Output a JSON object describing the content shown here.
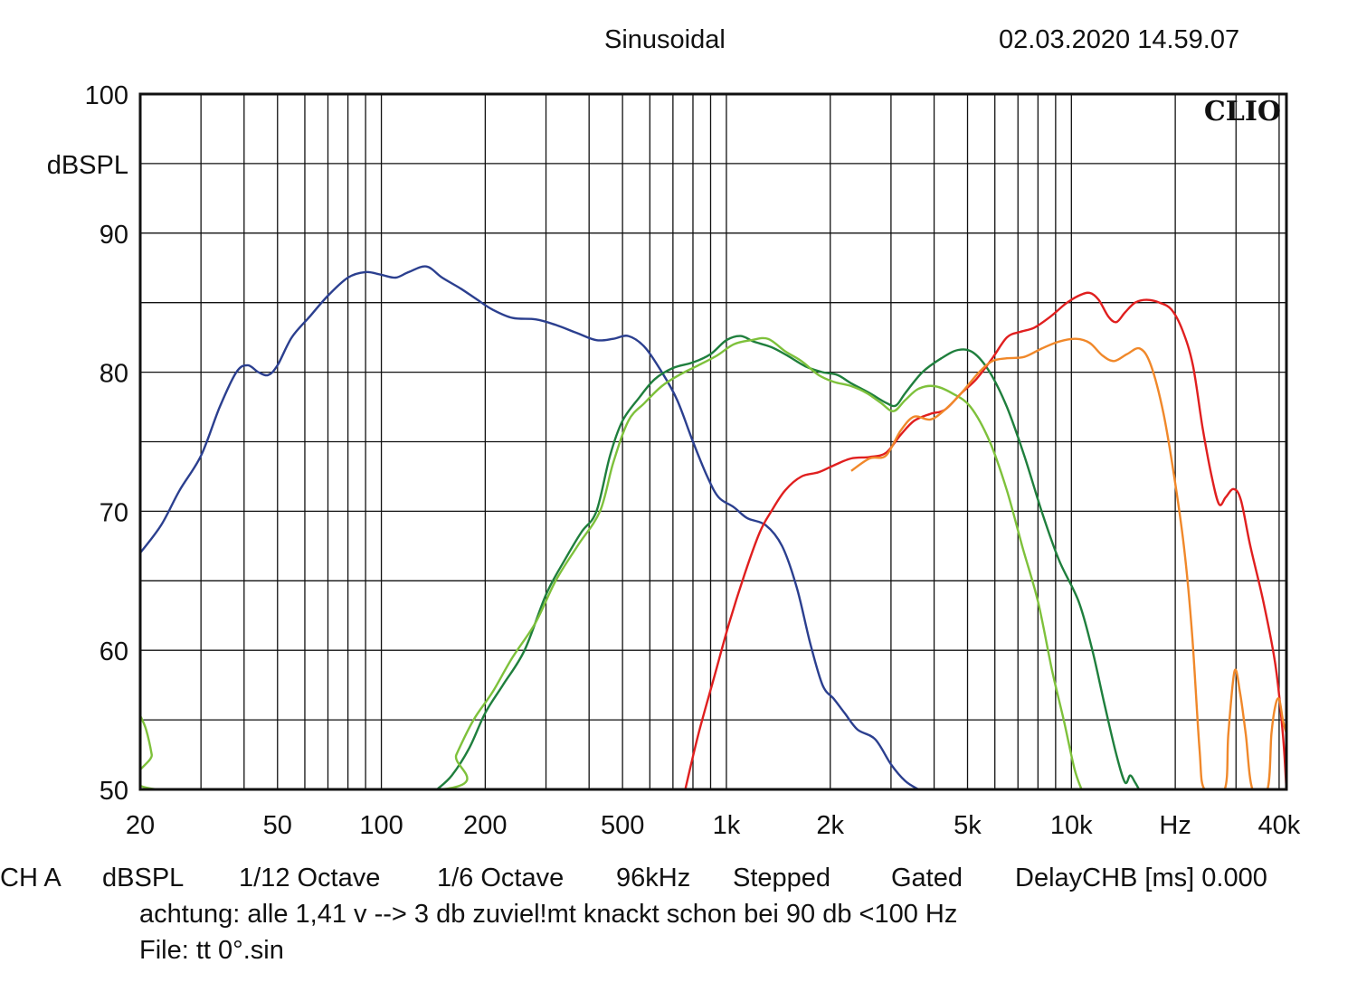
{
  "header": {
    "mode": "Sinusoidal",
    "timestamp": "02.03.2020 14.59.07"
  },
  "brand_label": "CLIO",
  "footer": {
    "settings": [
      "CH A",
      "dBSPL",
      "1/12 Octave",
      "1/6 Octave",
      "96kHz",
      "Stepped",
      "Gated",
      "DelayCHB [ms] 0.000"
    ],
    "note": "achtung: alle 1,41 v --> 3 db zuviel!mt knackt schon bei 90 db <100 Hz",
    "file": "File: tt 0°.sin"
  },
  "chart_data": {
    "type": "line",
    "title": "Sinusoidal",
    "ylabel": "dBSPL",
    "xlabel": "Hz",
    "x_scale": "log",
    "xlim": [
      20,
      42000
    ],
    "ylim": [
      50,
      100
    ],
    "grid": true,
    "x_tick_labels": [
      {
        "value": 20,
        "label": "20"
      },
      {
        "value": 50,
        "label": "50"
      },
      {
        "value": 100,
        "label": "100"
      },
      {
        "value": 200,
        "label": "200"
      },
      {
        "value": 500,
        "label": "500"
      },
      {
        "value": 1000,
        "label": "1k"
      },
      {
        "value": 2000,
        "label": "2k"
      },
      {
        "value": 5000,
        "label": "5k"
      },
      {
        "value": 10000,
        "label": "10k"
      },
      {
        "value": 20000,
        "label": "Hz"
      },
      {
        "value": 40000,
        "label": "40k"
      }
    ],
    "y_ticks": [
      50,
      60,
      70,
      80,
      90,
      100
    ],
    "series": [
      {
        "color": "#2b3f8f",
        "points": [
          [
            20,
            67
          ],
          [
            23,
            69
          ],
          [
            26,
            71.5
          ],
          [
            30,
            74
          ],
          [
            34,
            77.5
          ],
          [
            38,
            80
          ],
          [
            41,
            80.5
          ],
          [
            44,
            80
          ],
          [
            47,
            79.8
          ],
          [
            50,
            80.5
          ],
          [
            55,
            82.5
          ],
          [
            62,
            84
          ],
          [
            70,
            85.5
          ],
          [
            80,
            86.8
          ],
          [
            90,
            87.2
          ],
          [
            100,
            87
          ],
          [
            110,
            86.8
          ],
          [
            120,
            87.2
          ],
          [
            135,
            87.6
          ],
          [
            150,
            86.8
          ],
          [
            170,
            86
          ],
          [
            190,
            85.2
          ],
          [
            210,
            84.5
          ],
          [
            240,
            83.9
          ],
          [
            280,
            83.8
          ],
          [
            320,
            83.4
          ],
          [
            370,
            82.8
          ],
          [
            420,
            82.3
          ],
          [
            470,
            82.4
          ],
          [
            520,
            82.6
          ],
          [
            580,
            81.8
          ],
          [
            650,
            80
          ],
          [
            720,
            78
          ],
          [
            800,
            75
          ],
          [
            880,
            72.5
          ],
          [
            950,
            71
          ],
          [
            1050,
            70.3
          ],
          [
            1150,
            69.5
          ],
          [
            1300,
            69
          ],
          [
            1450,
            67.5
          ],
          [
            1600,
            64.5
          ],
          [
            1750,
            60.5
          ],
          [
            1900,
            57.5
          ],
          [
            2050,
            56.5
          ],
          [
            2200,
            55.5
          ],
          [
            2400,
            54.3
          ],
          [
            2700,
            53.6
          ],
          [
            3000,
            51.8
          ],
          [
            3300,
            50.6
          ],
          [
            3600,
            50
          ]
        ]
      },
      {
        "color": "#1f7f3d",
        "points": [
          [
            145,
            50
          ],
          [
            160,
            51
          ],
          [
            180,
            53
          ],
          [
            200,
            55.5
          ],
          [
            225,
            57.5
          ],
          [
            260,
            60
          ],
          [
            300,
            64
          ],
          [
            340,
            66.5
          ],
          [
            380,
            68.5
          ],
          [
            420,
            70
          ],
          [
            460,
            74
          ],
          [
            500,
            76.5
          ],
          [
            560,
            78.2
          ],
          [
            620,
            79.5
          ],
          [
            700,
            80.3
          ],
          [
            800,
            80.7
          ],
          [
            900,
            81.3
          ],
          [
            1000,
            82.3
          ],
          [
            1100,
            82.6
          ],
          [
            1200,
            82.2
          ],
          [
            1350,
            81.8
          ],
          [
            1500,
            81.2
          ],
          [
            1700,
            80.4
          ],
          [
            1900,
            80
          ],
          [
            2100,
            79.8
          ],
          [
            2300,
            79.2
          ],
          [
            2600,
            78.5
          ],
          [
            2900,
            77.8
          ],
          [
            3100,
            77.6
          ],
          [
            3300,
            78.5
          ],
          [
            3700,
            80
          ],
          [
            4200,
            81
          ],
          [
            4700,
            81.6
          ],
          [
            5200,
            81.4
          ],
          [
            5800,
            80
          ],
          [
            6500,
            77.5
          ],
          [
            7300,
            74
          ],
          [
            8200,
            70
          ],
          [
            9200,
            66.5
          ],
          [
            10500,
            63.5
          ],
          [
            11500,
            60
          ],
          [
            12500,
            56
          ],
          [
            13500,
            52.5
          ],
          [
            14300,
            50.5
          ],
          [
            14800,
            51
          ],
          [
            15300,
            50.5
          ],
          [
            15700,
            50
          ]
        ]
      },
      {
        "color": "#7ec13b",
        "points": [
          [
            20,
            55.3
          ],
          [
            20.8,
            54.3
          ],
          [
            21.6,
            52.5
          ],
          [
            22.3,
            50
          ],
          [
            150,
            50
          ],
          [
            165,
            52.5
          ],
          [
            185,
            55
          ],
          [
            210,
            57
          ],
          [
            240,
            59.5
          ],
          [
            280,
            62
          ],
          [
            320,
            65
          ],
          [
            370,
            67.5
          ],
          [
            430,
            70
          ],
          [
            470,
            73.5
          ],
          [
            520,
            76.5
          ],
          [
            580,
            77.8
          ],
          [
            650,
            79
          ],
          [
            730,
            79.8
          ],
          [
            830,
            80.5
          ],
          [
            940,
            81.2
          ],
          [
            1050,
            82
          ],
          [
            1180,
            82.3
          ],
          [
            1320,
            82.4
          ],
          [
            1480,
            81.5
          ],
          [
            1650,
            80.8
          ],
          [
            1850,
            79.8
          ],
          [
            2050,
            79.3
          ],
          [
            2300,
            79
          ],
          [
            2550,
            78.5
          ],
          [
            2800,
            77.8
          ],
          [
            3050,
            77.2
          ],
          [
            3300,
            78
          ],
          [
            3600,
            78.8
          ],
          [
            4000,
            79
          ],
          [
            4500,
            78.5
          ],
          [
            5100,
            77.5
          ],
          [
            5800,
            75
          ],
          [
            6500,
            71.5
          ],
          [
            7200,
            67.5
          ],
          [
            8000,
            63.5
          ],
          [
            8800,
            58.5
          ],
          [
            9500,
            55
          ],
          [
            10200,
            51.5
          ],
          [
            10700,
            50
          ]
        ]
      },
      {
        "color": "#e01f1f",
        "points": [
          [
            760,
            50
          ],
          [
            830,
            54
          ],
          [
            920,
            58
          ],
          [
            1020,
            62
          ],
          [
            1130,
            65.5
          ],
          [
            1250,
            68.5
          ],
          [
            1350,
            70
          ],
          [
            1480,
            71.5
          ],
          [
            1650,
            72.5
          ],
          [
            1850,
            72.8
          ],
          [
            2050,
            73.3
          ],
          [
            2300,
            73.8
          ],
          [
            2600,
            73.9
          ],
          [
            2900,
            74.2
          ],
          [
            3200,
            75.5
          ],
          [
            3500,
            76.5
          ],
          [
            3900,
            77
          ],
          [
            4300,
            77.3
          ],
          [
            4800,
            78.5
          ],
          [
            5300,
            79.5
          ],
          [
            5900,
            81
          ],
          [
            6500,
            82.5
          ],
          [
            7100,
            82.9
          ],
          [
            7800,
            83.2
          ],
          [
            8700,
            84
          ],
          [
            9600,
            84.9
          ],
          [
            10500,
            85.5
          ],
          [
            11300,
            85.7
          ],
          [
            12000,
            85.2
          ],
          [
            12800,
            84
          ],
          [
            13500,
            83.6
          ],
          [
            14300,
            84.3
          ],
          [
            15300,
            85
          ],
          [
            16500,
            85.2
          ],
          [
            18000,
            85
          ],
          [
            19500,
            84.5
          ],
          [
            21000,
            83
          ],
          [
            22500,
            80.5
          ],
          [
            24000,
            76
          ],
          [
            25500,
            72.5
          ],
          [
            26800,
            70.5
          ],
          [
            28000,
            71
          ],
          [
            29500,
            71.6
          ],
          [
            31000,
            70.8
          ],
          [
            33000,
            67.5
          ],
          [
            36000,
            63.5
          ],
          [
            39000,
            59
          ],
          [
            41000,
            54
          ],
          [
            42000,
            50
          ]
        ]
      },
      {
        "color": "#f0882a",
        "points": [
          [
            2300,
            72.9
          ],
          [
            2600,
            73.8
          ],
          [
            2900,
            74
          ],
          [
            3200,
            75.8
          ],
          [
            3500,
            76.8
          ],
          [
            3900,
            76.6
          ],
          [
            4300,
            77.3
          ],
          [
            4800,
            78.5
          ],
          [
            5400,
            80
          ],
          [
            5900,
            80.8
          ],
          [
            6500,
            81
          ],
          [
            7300,
            81.1
          ],
          [
            8200,
            81.7
          ],
          [
            9200,
            82.2
          ],
          [
            10300,
            82.4
          ],
          [
            11300,
            82.1
          ],
          [
            12300,
            81.2
          ],
          [
            13300,
            80.8
          ],
          [
            14500,
            81.3
          ],
          [
            15800,
            81.7
          ],
          [
            17000,
            80.5
          ],
          [
            18500,
            77
          ],
          [
            20000,
            72
          ],
          [
            21300,
            67
          ],
          [
            22400,
            61
          ],
          [
            23500,
            53
          ],
          [
            24300,
            50
          ],
          [
            27800,
            50
          ],
          [
            28500,
            54
          ],
          [
            29700,
            58.5
          ],
          [
            30800,
            57
          ],
          [
            32000,
            54
          ],
          [
            33500,
            50
          ],
          [
            37000,
            50
          ],
          [
            38000,
            54
          ],
          [
            39000,
            56
          ],
          [
            40000,
            56.5
          ],
          [
            41000,
            55
          ],
          [
            42000,
            54
          ]
        ]
      }
    ]
  }
}
